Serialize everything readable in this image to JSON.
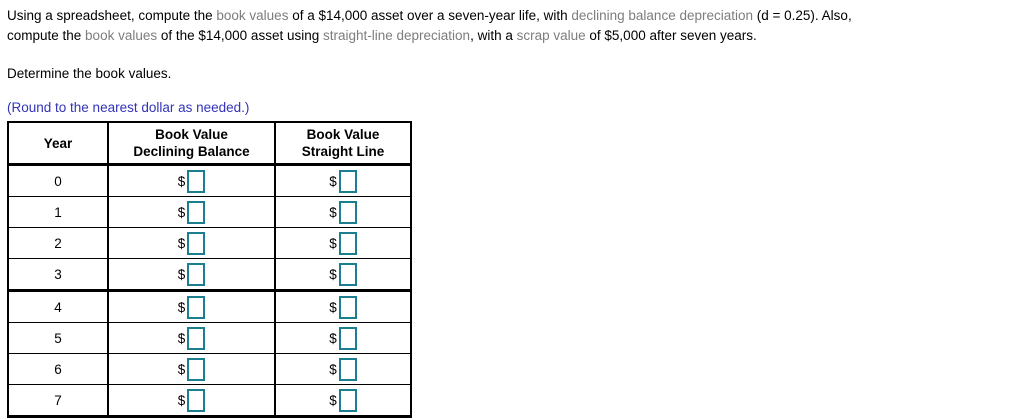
{
  "colors": {
    "body_text": "#000000",
    "muted_term_text": "#7d7d7d",
    "instruction_blue": "#3333bb",
    "input_border_teal": "#1b7e91",
    "table_border": "#000000"
  },
  "problem": {
    "line1": [
      {
        "text": "Using a spreadsheet, compute the ",
        "muted": false
      },
      {
        "text": "book values",
        "muted": true
      },
      {
        "text": " of a $14,000 asset over a seven-year life, with ",
        "muted": false
      },
      {
        "text": "declining balance depreciation",
        "muted": true
      },
      {
        "text": " (d = 0.25). Also,",
        "muted": false
      }
    ],
    "line2": [
      {
        "text": "compute the ",
        "muted": false
      },
      {
        "text": "book values",
        "muted": true
      },
      {
        "text": " of the $14,000 asset using ",
        "muted": false
      },
      {
        "text": "straight-line depreciation",
        "muted": true
      },
      {
        "text": ", with a ",
        "muted": false
      },
      {
        "text": "scrap value",
        "muted": true
      },
      {
        "text": " of $5,000 after seven years.",
        "muted": false
      }
    ]
  },
  "determine_text": "Determine the book values.",
  "round_note": "(Round to the nearest dollar as needed.)",
  "table": {
    "headers": {
      "year": "Year",
      "col2_line1": "Book Value",
      "col2_line2": "Declining Balance",
      "col3_line1": "Book Value",
      "col3_line2": "Straight Line"
    },
    "currency": "$",
    "rows": [
      {
        "year": "0",
        "declining_balance_value": "",
        "straight_line_value": ""
      },
      {
        "year": "1",
        "declining_balance_value": "",
        "straight_line_value": ""
      },
      {
        "year": "2",
        "declining_balance_value": "",
        "straight_line_value": ""
      },
      {
        "year": "3",
        "declining_balance_value": "",
        "straight_line_value": ""
      },
      {
        "year": "4",
        "declining_balance_value": "",
        "straight_line_value": ""
      },
      {
        "year": "5",
        "declining_balance_value": "",
        "straight_line_value": ""
      },
      {
        "year": "6",
        "declining_balance_value": "",
        "straight_line_value": ""
      },
      {
        "year": "7",
        "declining_balance_value": "",
        "straight_line_value": ""
      }
    ]
  }
}
